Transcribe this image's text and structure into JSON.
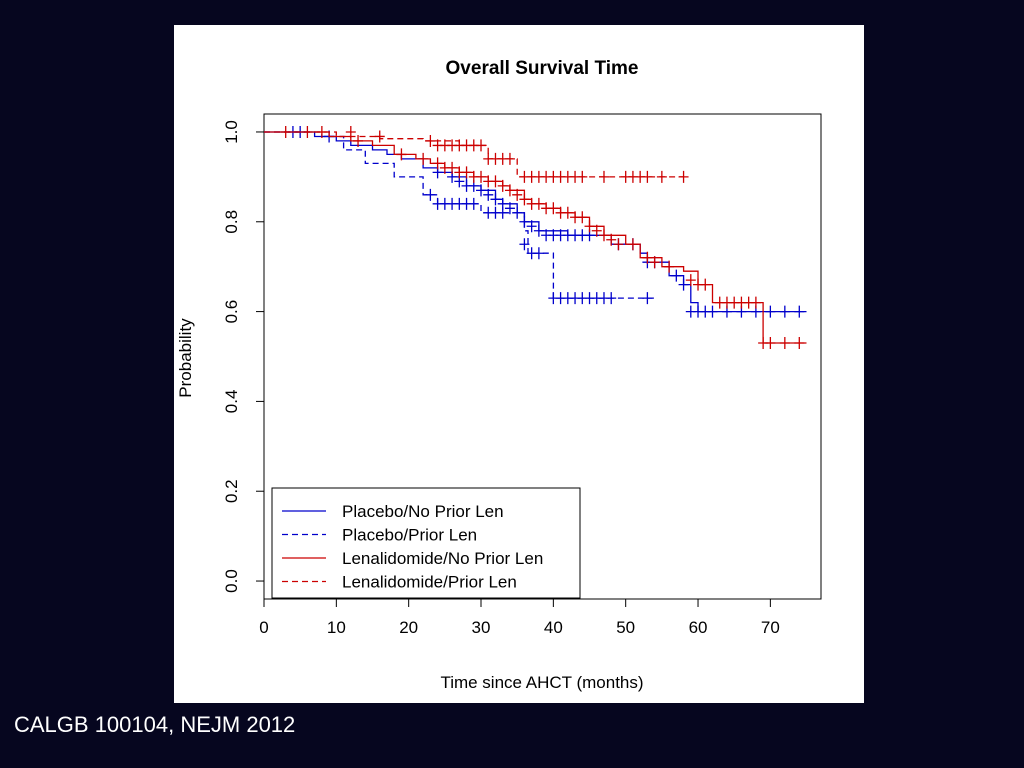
{
  "caption": "CALGB 100104, NEJM 2012",
  "chart_data": {
    "type": "line",
    "subtype": "kaplan-meier",
    "title": "Overall Survival Time",
    "xlabel": "Time since AHCT (months)",
    "ylabel": "Probability",
    "xlim": [
      0,
      77
    ],
    "ylim": [
      -0.04,
      1.04
    ],
    "xticks": [
      0,
      10,
      20,
      30,
      40,
      50,
      60,
      70
    ],
    "yticks": [
      0.0,
      0.2,
      0.4,
      0.6,
      0.8,
      1.0
    ],
    "xtick_labels": [
      "0",
      "10",
      "20",
      "30",
      "40",
      "50",
      "60",
      "70"
    ],
    "ytick_labels": [
      "0.0",
      "0.2",
      "0.4",
      "0.6",
      "0.8",
      "1.0"
    ],
    "grid": false,
    "legend_position": "bottom-left",
    "series": [
      {
        "name": "Placebo/No Prior Len",
        "color": "#0000cc",
        "dash": "solid",
        "steps": [
          [
            0,
            1.0
          ],
          [
            7,
            0.99
          ],
          [
            10,
            0.98
          ],
          [
            12,
            0.97
          ],
          [
            15,
            0.96
          ],
          [
            17,
            0.95
          ],
          [
            19,
            0.94
          ],
          [
            22,
            0.92
          ],
          [
            24,
            0.91
          ],
          [
            26,
            0.9
          ],
          [
            28,
            0.88
          ],
          [
            30,
            0.87
          ],
          [
            32,
            0.85
          ],
          [
            33,
            0.84
          ],
          [
            35,
            0.82
          ],
          [
            36,
            0.8
          ],
          [
            38,
            0.78
          ],
          [
            42,
            0.77
          ],
          [
            48,
            0.75
          ],
          [
            52,
            0.73
          ],
          [
            53,
            0.71
          ],
          [
            56,
            0.68
          ],
          [
            58,
            0.66
          ],
          [
            59,
            0.62
          ],
          [
            60,
            0.6
          ],
          [
            75,
            0.6
          ]
        ],
        "censored": [
          [
            5,
            1.0
          ],
          [
            9,
            0.99
          ],
          [
            24,
            0.91
          ],
          [
            26,
            0.9
          ],
          [
            27,
            0.89
          ],
          [
            28,
            0.88
          ],
          [
            29,
            0.88
          ],
          [
            30,
            0.87
          ],
          [
            31,
            0.86
          ],
          [
            32,
            0.85
          ],
          [
            33,
            0.84
          ],
          [
            34,
            0.83
          ],
          [
            35,
            0.82
          ],
          [
            36,
            0.8
          ],
          [
            37,
            0.79
          ],
          [
            38,
            0.78
          ],
          [
            39,
            0.77
          ],
          [
            40,
            0.77
          ],
          [
            41,
            0.77
          ],
          [
            42,
            0.77
          ],
          [
            43,
            0.77
          ],
          [
            44,
            0.77
          ],
          [
            45,
            0.77
          ],
          [
            49,
            0.75
          ],
          [
            51,
            0.75
          ],
          [
            53,
            0.71
          ],
          [
            54,
            0.71
          ],
          [
            57,
            0.68
          ],
          [
            58,
            0.66
          ],
          [
            59,
            0.6
          ],
          [
            60,
            0.6
          ],
          [
            61,
            0.6
          ],
          [
            62,
            0.6
          ],
          [
            64,
            0.6
          ],
          [
            66,
            0.6
          ],
          [
            68,
            0.6
          ],
          [
            70,
            0.6
          ],
          [
            72,
            0.6
          ],
          [
            74,
            0.6
          ]
        ]
      },
      {
        "name": "Placebo/Prior Len",
        "color": "#0000cc",
        "dash": "dashed",
        "steps": [
          [
            0,
            1.0
          ],
          [
            8,
            0.99
          ],
          [
            11,
            0.96
          ],
          [
            14,
            0.93
          ],
          [
            18,
            0.9
          ],
          [
            22,
            0.86
          ],
          [
            24,
            0.84
          ],
          [
            30,
            0.82
          ],
          [
            36,
            0.78
          ],
          [
            36.5,
            0.73
          ],
          [
            40,
            0.63
          ],
          [
            54,
            0.63
          ]
        ],
        "censored": [
          [
            4,
            1.0
          ],
          [
            23,
            0.86
          ],
          [
            24,
            0.84
          ],
          [
            25,
            0.84
          ],
          [
            26,
            0.84
          ],
          [
            27,
            0.84
          ],
          [
            28,
            0.84
          ],
          [
            29,
            0.84
          ],
          [
            31,
            0.82
          ],
          [
            32,
            0.82
          ],
          [
            33,
            0.82
          ],
          [
            36,
            0.75
          ],
          [
            37,
            0.73
          ],
          [
            38,
            0.73
          ],
          [
            40,
            0.63
          ],
          [
            41,
            0.63
          ],
          [
            42,
            0.63
          ],
          [
            43,
            0.63
          ],
          [
            44,
            0.63
          ],
          [
            45,
            0.63
          ],
          [
            46,
            0.63
          ],
          [
            47,
            0.63
          ],
          [
            48,
            0.63
          ],
          [
            53,
            0.63
          ]
        ]
      },
      {
        "name": "Lenalidomide/No Prior Len",
        "color": "#cc0000",
        "dash": "solid",
        "steps": [
          [
            0,
            1.0
          ],
          [
            9,
            0.99
          ],
          [
            12,
            0.98
          ],
          [
            15,
            0.97
          ],
          [
            18,
            0.95
          ],
          [
            21,
            0.94
          ],
          [
            23,
            0.93
          ],
          [
            25,
            0.92
          ],
          [
            27,
            0.91
          ],
          [
            29,
            0.9
          ],
          [
            31,
            0.89
          ],
          [
            33,
            0.88
          ],
          [
            34,
            0.87
          ],
          [
            36,
            0.85
          ],
          [
            37,
            0.84
          ],
          [
            39,
            0.83
          ],
          [
            41,
            0.82
          ],
          [
            43,
            0.81
          ],
          [
            45,
            0.79
          ],
          [
            47,
            0.77
          ],
          [
            50,
            0.75
          ],
          [
            52,
            0.72
          ],
          [
            55,
            0.7
          ],
          [
            58,
            0.69
          ],
          [
            60,
            0.66
          ],
          [
            62,
            0.62
          ],
          [
            69,
            0.53
          ],
          [
            75,
            0.53
          ]
        ],
        "censored": [
          [
            6,
            1.0
          ],
          [
            13,
            0.98
          ],
          [
            19,
            0.95
          ],
          [
            22,
            0.94
          ],
          [
            24,
            0.93
          ],
          [
            25,
            0.92
          ],
          [
            26,
            0.92
          ],
          [
            27,
            0.91
          ],
          [
            28,
            0.91
          ],
          [
            29,
            0.9
          ],
          [
            30,
            0.9
          ],
          [
            31,
            0.89
          ],
          [
            32,
            0.89
          ],
          [
            33,
            0.88
          ],
          [
            34,
            0.87
          ],
          [
            35,
            0.86
          ],
          [
            36,
            0.85
          ],
          [
            37,
            0.84
          ],
          [
            38,
            0.84
          ],
          [
            39,
            0.83
          ],
          [
            40,
            0.83
          ],
          [
            41,
            0.82
          ],
          [
            42,
            0.82
          ],
          [
            43,
            0.81
          ],
          [
            44,
            0.81
          ],
          [
            45,
            0.79
          ],
          [
            46,
            0.78
          ],
          [
            47,
            0.77
          ],
          [
            48,
            0.76
          ],
          [
            49,
            0.75
          ],
          [
            51,
            0.75
          ],
          [
            53,
            0.72
          ],
          [
            54,
            0.71
          ],
          [
            56,
            0.7
          ],
          [
            59,
            0.67
          ],
          [
            60,
            0.66
          ],
          [
            61,
            0.66
          ],
          [
            63,
            0.62
          ],
          [
            64,
            0.62
          ],
          [
            65,
            0.62
          ],
          [
            66,
            0.62
          ],
          [
            67,
            0.62
          ],
          [
            68,
            0.62
          ],
          [
            69,
            0.53
          ],
          [
            70,
            0.53
          ],
          [
            72,
            0.53
          ],
          [
            74,
            0.53
          ]
        ]
      },
      {
        "name": "Lenalidomide/Prior Len",
        "color": "#cc0000",
        "dash": "dashed",
        "steps": [
          [
            0,
            1.0
          ],
          [
            10,
            0.99
          ],
          [
            16,
            0.985
          ],
          [
            22,
            0.98
          ],
          [
            27,
            0.97
          ],
          [
            31,
            0.94
          ],
          [
            35,
            0.9
          ],
          [
            58,
            0.9
          ]
        ],
        "censored": [
          [
            3,
            1.0
          ],
          [
            8,
            1.0
          ],
          [
            12,
            1.0
          ],
          [
            16,
            0.99
          ],
          [
            23,
            0.98
          ],
          [
            24,
            0.97
          ],
          [
            25,
            0.97
          ],
          [
            26,
            0.97
          ],
          [
            27,
            0.97
          ],
          [
            28,
            0.97
          ],
          [
            29,
            0.97
          ],
          [
            30,
            0.97
          ],
          [
            31,
            0.94
          ],
          [
            32,
            0.94
          ],
          [
            33,
            0.94
          ],
          [
            34,
            0.94
          ],
          [
            36,
            0.9
          ],
          [
            37,
            0.9
          ],
          [
            38,
            0.9
          ],
          [
            39,
            0.9
          ],
          [
            40,
            0.9
          ],
          [
            41,
            0.9
          ],
          [
            42,
            0.9
          ],
          [
            43,
            0.9
          ],
          [
            44,
            0.9
          ],
          [
            47,
            0.9
          ],
          [
            50,
            0.9
          ],
          [
            51,
            0.9
          ],
          [
            52,
            0.9
          ],
          [
            53,
            0.9
          ],
          [
            55,
            0.9
          ],
          [
            58,
            0.9
          ]
        ]
      }
    ]
  }
}
